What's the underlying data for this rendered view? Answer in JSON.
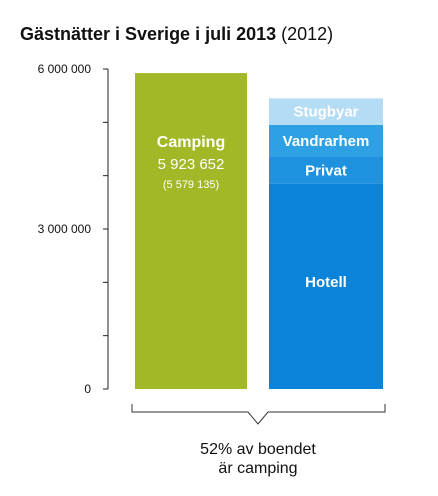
{
  "chart_data": {
    "type": "bar",
    "title": "Gästnätter i Sverige i juli 2013",
    "title_suffix": "(2012)",
    "yticks": [
      "6 000 000",
      "3 000 000",
      "0"
    ],
    "ytick_values": [
      6000000,
      3000000,
      0
    ],
    "ylim": [
      0,
      6000000
    ],
    "grid": false,
    "bars": [
      {
        "label": "Camping",
        "value": 5923652,
        "value_label": "5 923 652",
        "previous_label": "(5 579 135)",
        "color": "#a3b827"
      },
      {
        "stacked": true,
        "segments": [
          {
            "label": "Hotell",
            "value": 3850000,
            "color": "#0a83d8"
          },
          {
            "label": "Privat",
            "value": 500000,
            "color": "#1e92de"
          },
          {
            "label": "Vandrarhem",
            "value": 600000,
            "color": "#2ea0e4"
          },
          {
            "label": "Stugbyar",
            "value": 500000,
            "color": "#b4dcf4"
          }
        ]
      }
    ],
    "annotation": [
      "52% av boendet",
      "är camping"
    ]
  }
}
